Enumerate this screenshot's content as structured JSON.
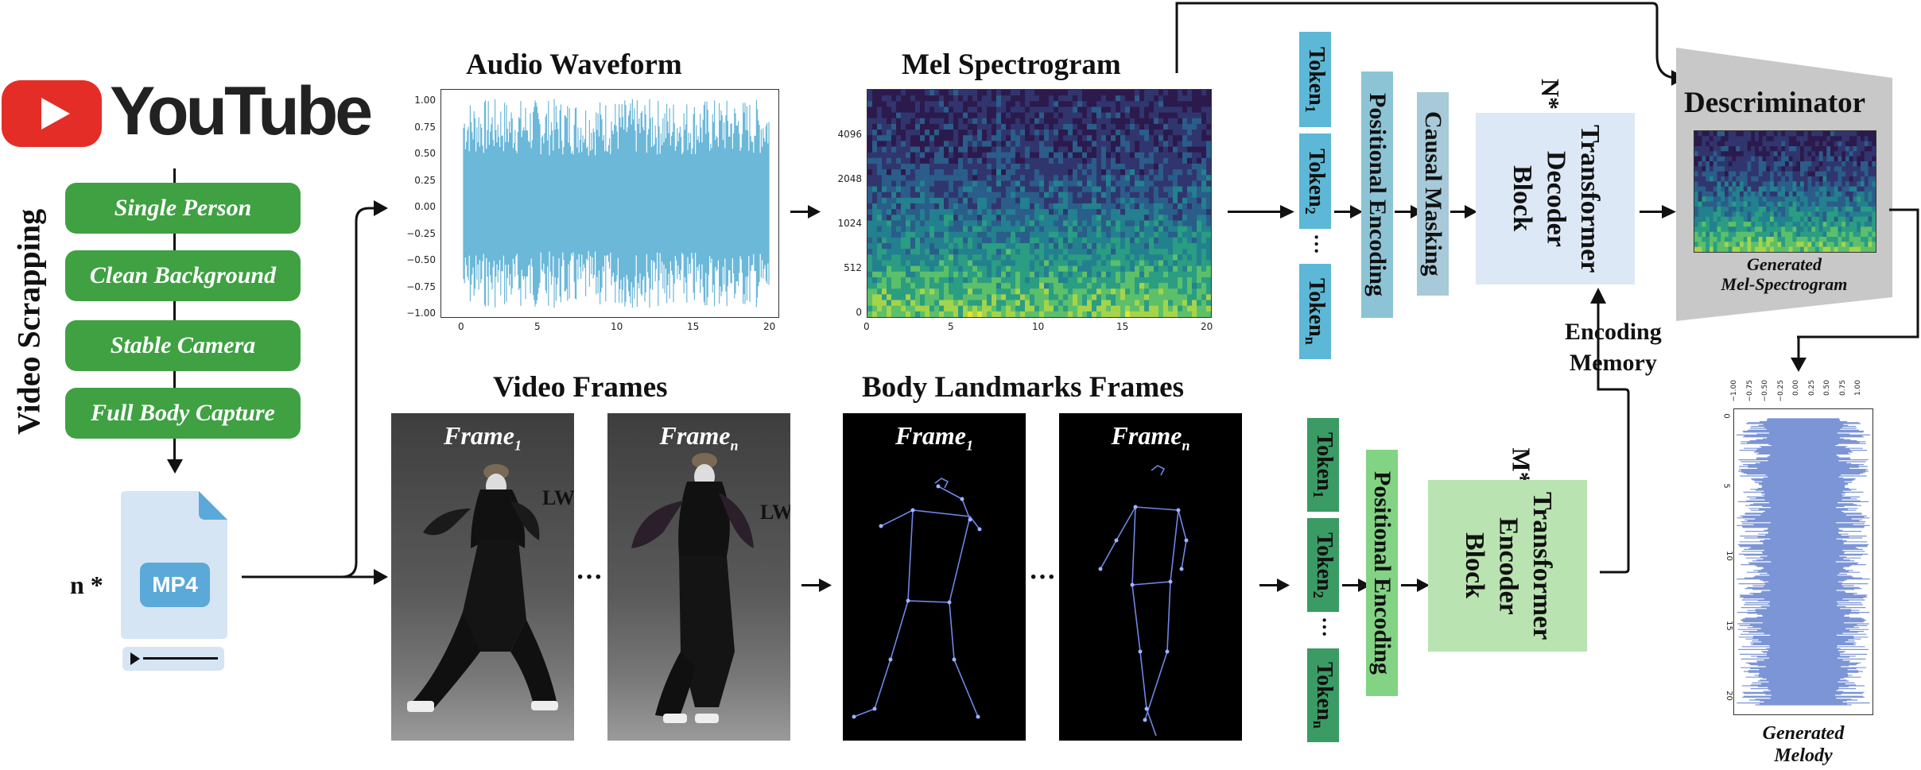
{
  "left": {
    "youtube_logo_text": "YouTube",
    "vertical_label": "Video Scrapping",
    "filters": [
      "Single Person",
      "Clean Background",
      "Stable Camera",
      "Full Body Capture"
    ],
    "file_badge": "MP4",
    "file_count": "n *"
  },
  "audio_waveform": {
    "title": "Audio Waveform",
    "y_ticks": [
      "1.00",
      "0.75",
      "0.50",
      "0.25",
      "0.00",
      "−0.25",
      "−0.50",
      "−0.75",
      "−1.00"
    ],
    "x_ticks": [
      "0",
      "5",
      "10",
      "15",
      "20"
    ]
  },
  "mel_spectrogram": {
    "title": "Mel Spectrogram",
    "y_ticks": [
      "4096",
      "2048",
      "1024",
      "512",
      "0"
    ],
    "x_ticks": [
      "0",
      "5",
      "10",
      "15",
      "20"
    ]
  },
  "video_frames": {
    "title": "Video Frames",
    "frame_word": "Frame",
    "frame1_sub": "1",
    "framen_sub": "n",
    "dots": "···",
    "sign_text": "LW"
  },
  "body_landmarks": {
    "title": "Body Landmarks Frames",
    "frame_word": "Frame",
    "frame1_sub": "1",
    "framen_sub": "n",
    "dots": "···"
  },
  "decoder_branch": {
    "token_word": "Token",
    "token_subs": [
      "1",
      "2",
      "n"
    ],
    "token_dots": "···",
    "positional_encoding": "Positional Encoding",
    "causal_masking": "Causal Masking",
    "block_label_line1": "Transformer",
    "block_label_line2": "Decoder",
    "block_label_line3": "Block",
    "repeat": "N*",
    "encoding_memory_line1": "Encoding",
    "encoding_memory_line2": "Memory"
  },
  "encoder_branch": {
    "token_word": "Token",
    "token_subs": [
      "1",
      "2",
      "n"
    ],
    "token_dots": "···",
    "positional_encoding": "Positional Encoding",
    "block_label_line1": "Transformer",
    "block_label_line2": "Encoder",
    "block_label_line3": "Block",
    "repeat": "M*"
  },
  "discriminator": {
    "title": "Descriminator",
    "caption_line1": "Generated",
    "caption_line2": "Mel-Spectrogram"
  },
  "generated_melody": {
    "caption_line1": "Generated",
    "caption_line2": "Melody",
    "top_ticks": [
      "−1.00",
      "−0.75",
      "−0.50",
      "−0.25",
      "0.00",
      "0.25",
      "0.50",
      "0.75",
      "1.00"
    ],
    "side_ticks": [
      "0",
      "5",
      "10",
      "15",
      "20"
    ]
  },
  "colors": {
    "waveform": "#6bb8d9",
    "melody": "#7b95d6",
    "green_button": "#3fa142",
    "youtube_red": "#e52d27",
    "decoder_block": "#dce8f5",
    "encoder_block": "#b9e3b0",
    "discriminator_gray": "#c8c8c8"
  }
}
